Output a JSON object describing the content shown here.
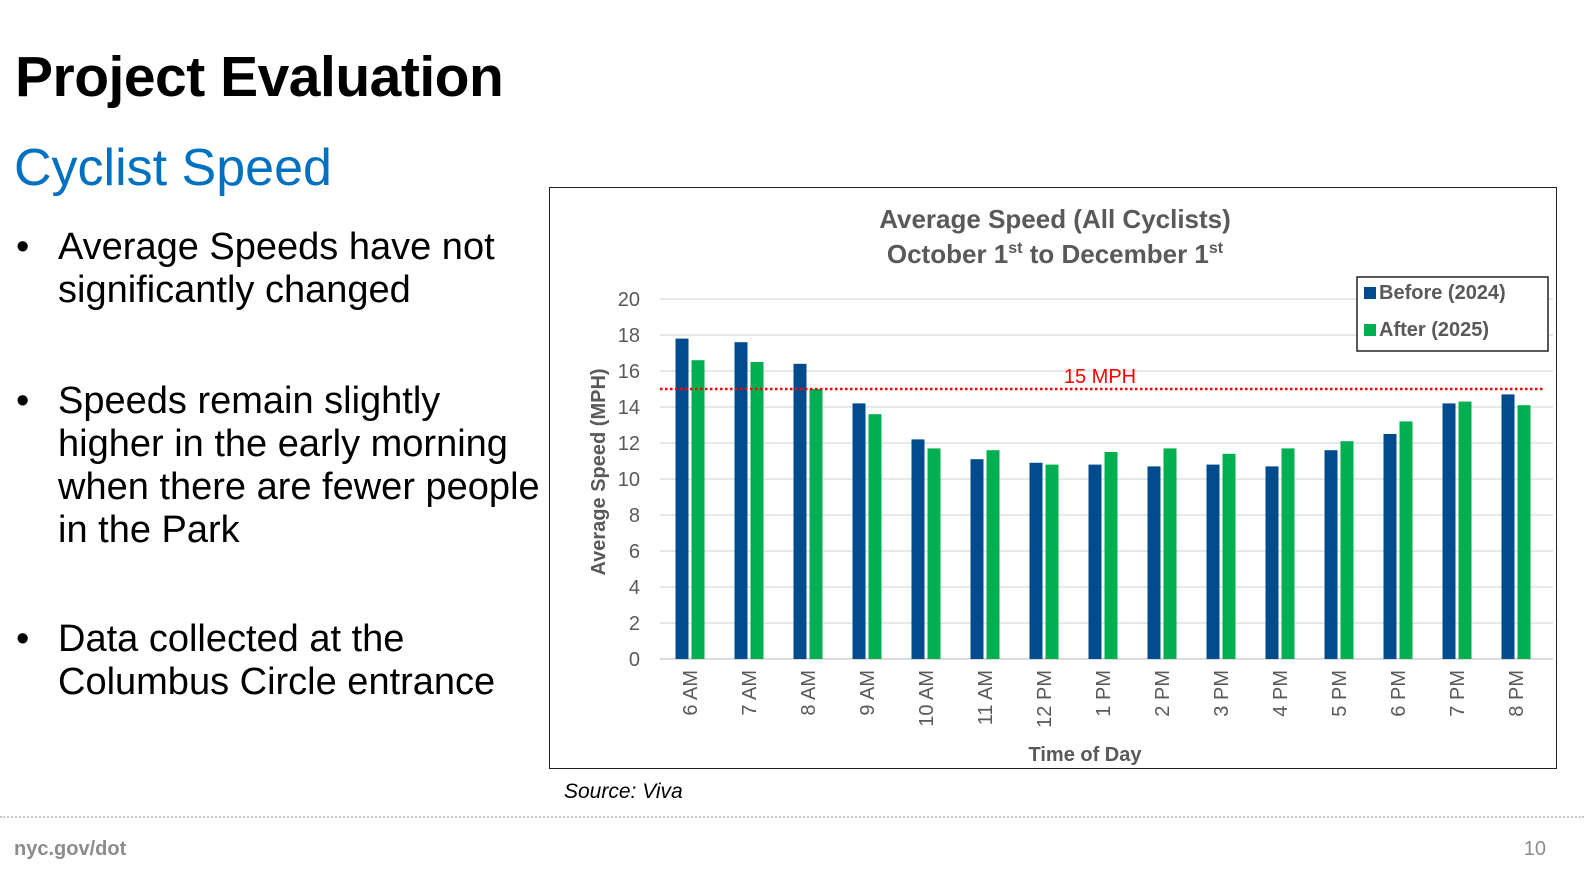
{
  "slide": {
    "title": "Project Evaluation",
    "subtitle": "Cyclist Speed",
    "bullets": [
      "Average Speeds have not significantly changed",
      "Speeds remain slightly higher in the early morning when there are fewer people in the Park",
      "Data collected at the Columbus Circle entrance"
    ],
    "bullet_symbol": "•",
    "source": "Source: Viva",
    "footer_url": "nyc.gov/dot",
    "page_number": "10"
  },
  "chart_data": {
    "type": "bar",
    "title_line1": "Average Speed (All Cyclists)",
    "title_line2_parts": [
      "October 1",
      "st",
      " to December 1",
      "st"
    ],
    "xlabel": "Time of Day",
    "ylabel": "Average Speed (MPH)",
    "ylim": [
      0,
      20
    ],
    "yticks": [
      0,
      2,
      4,
      6,
      8,
      10,
      12,
      14,
      16,
      18,
      20
    ],
    "grid": true,
    "legend_position": "top-right",
    "categories": [
      "6 AM",
      "7 AM",
      "8 AM",
      "9 AM",
      "10 AM",
      "11 AM",
      "12 PM",
      "1 PM",
      "2 PM",
      "3 PM",
      "4 PM",
      "5 PM",
      "6 PM",
      "7 PM",
      "8 PM"
    ],
    "series": [
      {
        "name": "Before (2024)",
        "color": "#004B8D",
        "values": [
          17.8,
          17.6,
          16.4,
          14.2,
          12.2,
          11.1,
          10.9,
          10.8,
          10.7,
          10.8,
          10.7,
          11.6,
          12.5,
          14.2,
          14.7
        ]
      },
      {
        "name": "After (2025)",
        "color": "#00B050",
        "values": [
          16.6,
          16.5,
          15.0,
          13.6,
          11.7,
          11.6,
          10.8,
          11.5,
          11.7,
          11.4,
          11.7,
          12.1,
          13.2,
          14.3,
          14.1
        ]
      }
    ],
    "reference_line": {
      "value": 15,
      "label": "15 MPH",
      "color": "#FF0000",
      "style": "dotted"
    }
  }
}
